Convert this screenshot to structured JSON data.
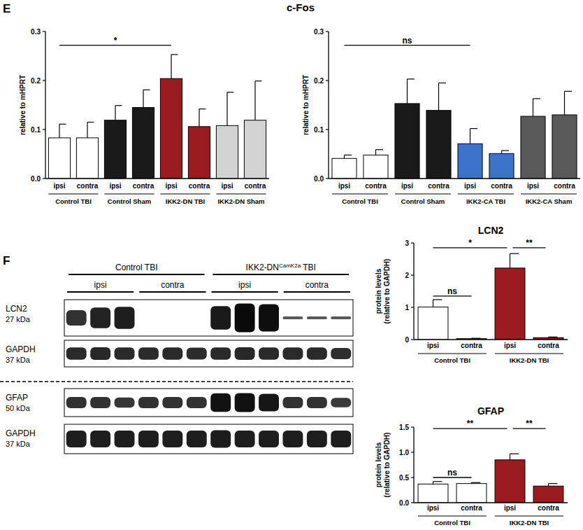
{
  "panel_labels": [
    "E",
    "F"
  ],
  "panel_e_title": "c-Fos",
  "chart_data": [
    {
      "type": "bar",
      "y_label": [
        "relative to mHPRT"
      ],
      "categories": [
        "ipsi",
        "contra",
        "ipsi",
        "contra",
        "ipsi",
        "contra",
        "ipsi",
        "contra"
      ],
      "groups": [
        "Control TBI",
        "Control Sham",
        "IKK2-DN TBI",
        "IKK2-DN Sham"
      ],
      "values": [
        0.083,
        0.083,
        0.119,
        0.145,
        0.204,
        0.106,
        0.108,
        0.119
      ],
      "errors": [
        0.028,
        0.032,
        0.03,
        0.036,
        0.049,
        0.036,
        0.068,
        0.08
      ],
      "colors": [
        "#ffffff",
        "#ffffff",
        "#1a1a1a",
        "#1a1a1a",
        "#9b1c20",
        "#9b1c20",
        "#d3d3d3",
        "#d3d3d3"
      ],
      "ylim": [
        0,
        0.3
      ],
      "yticks": [
        {
          "value": 0,
          "label": "0.0"
        },
        0.1,
        0.2,
        0.3
      ],
      "annotations": [
        {
          "text": "*",
          "from": 0,
          "to": 4,
          "y": 0.272
        }
      ]
    },
    {
      "type": "bar",
      "y_label": [
        "relative to mHPRT"
      ],
      "categories": [
        "ipsi",
        "contra",
        "ipsi",
        "contra",
        "ipsi",
        "contra",
        "ipsi",
        "contra"
      ],
      "groups": [
        "Control TBI",
        "Control Sham",
        "IKK2-CA TBI",
        "IKK2-CA Sham"
      ],
      "values": [
        0.041,
        0.048,
        0.153,
        0.139,
        0.071,
        0.051,
        0.127,
        0.13
      ],
      "errors": [
        0.007,
        0.011,
        0.05,
        0.056,
        0.031,
        0.006,
        0.036,
        0.048
      ],
      "colors": [
        "#ffffff",
        "#ffffff",
        "#1a1a1a",
        "#1a1a1a",
        "#3b74c8",
        "#3b74c8",
        "#595959",
        "#595959"
      ],
      "ylim": [
        0,
        0.3
      ],
      "yticks": [
        {
          "value": 0,
          "label": "0.0"
        },
        0.1,
        0.2,
        0.3
      ],
      "annotations": [
        {
          "text": "ns",
          "from": 0,
          "to": 4,
          "y": 0.272
        }
      ]
    },
    {
      "type": "bar",
      "title": "LCN2",
      "y_label": [
        "protein levels",
        "(relative to GAPDH)"
      ],
      "categories": [
        "ipsi",
        "contra",
        "ipsi",
        "contra"
      ],
      "groups": [
        "Control TBI",
        "IKK2-DN TBI"
      ],
      "values": [
        1.01,
        0.03,
        2.22,
        0.06
      ],
      "errors": [
        0.23,
        0.01,
        0.45,
        0.02
      ],
      "colors": [
        "#ffffff",
        "#ffffff",
        "#9b1c20",
        "#9b1c20"
      ],
      "ylim": [
        0,
        3
      ],
      "yticks": [
        0,
        1,
        2,
        3
      ],
      "annotations": [
        {
          "text": "ns",
          "from": 0,
          "to": 1,
          "y": 1.35
        },
        {
          "text": "*",
          "from": 0,
          "to": 2,
          "y": 2.85
        },
        {
          "text": "**",
          "from": 2,
          "to": 3,
          "y": 2.85
        }
      ]
    },
    {
      "type": "bar",
      "title": "GFAP",
      "y_label": [
        "protein levels",
        "(relative to GAPDH)"
      ],
      "categories": [
        "ipsi",
        "contra",
        "ipsi",
        "contra"
      ],
      "groups": [
        "Control TBI",
        "IKK2-DN TBI"
      ],
      "values": [
        0.37,
        0.38,
        0.85,
        0.33
      ],
      "errors": [
        0.05,
        0.02,
        0.12,
        0.05
      ],
      "colors": [
        "#ffffff",
        "#ffffff",
        "#9b1c20",
        "#9b1c20"
      ],
      "ylim": [
        0,
        1.5
      ],
      "yticks": [
        {
          "value": 0,
          "label": "0.0"
        },
        0.5,
        {
          "value": 1,
          "label": "1.0"
        },
        1.5
      ],
      "annotations": [
        {
          "text": "ns",
          "from": 0,
          "to": 1,
          "y": 0.5
        },
        {
          "text": "**",
          "from": 0,
          "to": 2,
          "y": 1.47
        },
        {
          "text": "**",
          "from": 2,
          "to": 3,
          "y": 1.47
        }
      ]
    }
  ],
  "blot": {
    "groups": [
      {
        "parts": [
          "Control TBI"
        ]
      },
      {
        "parts": [
          "IKK2-DN",
          "CamK2a",
          " TBI"
        ]
      }
    ],
    "subgroups": [
      "ipsi",
      "contra",
      "ipsi",
      "contra"
    ],
    "rows": [
      {
        "name": "LCN2",
        "size": "27 kDa",
        "dashed_before": false,
        "bands": [
          0.5,
          0.7,
          0.75,
          0,
          0,
          0,
          0.8,
          1,
          0.95,
          0.03,
          0.02,
          0.02
        ]
      },
      {
        "name": "GAPDH",
        "size": "37 kDa",
        "dashed_before": false,
        "bands": [
          0.6,
          0.62,
          0.6,
          0.6,
          0.6,
          0.58,
          0.6,
          0.62,
          0.6,
          0.6,
          0.6,
          0.55
        ]
      },
      {
        "name": "GFAP",
        "size": "50 kDa",
        "dashed_before": true,
        "bands": [
          0.5,
          0.5,
          0.45,
          0.5,
          0.5,
          0.5,
          0.9,
          0.92,
          0.85,
          0.5,
          0.5,
          0.4
        ]
      },
      {
        "name": "GAPDH",
        "size": "37 kDa",
        "dashed_before": false,
        "bands": [
          0.75,
          0.75,
          0.75,
          0.75,
          0.75,
          0.75,
          0.78,
          0.75,
          0.75,
          0.75,
          0.75,
          0.75
        ]
      }
    ]
  }
}
